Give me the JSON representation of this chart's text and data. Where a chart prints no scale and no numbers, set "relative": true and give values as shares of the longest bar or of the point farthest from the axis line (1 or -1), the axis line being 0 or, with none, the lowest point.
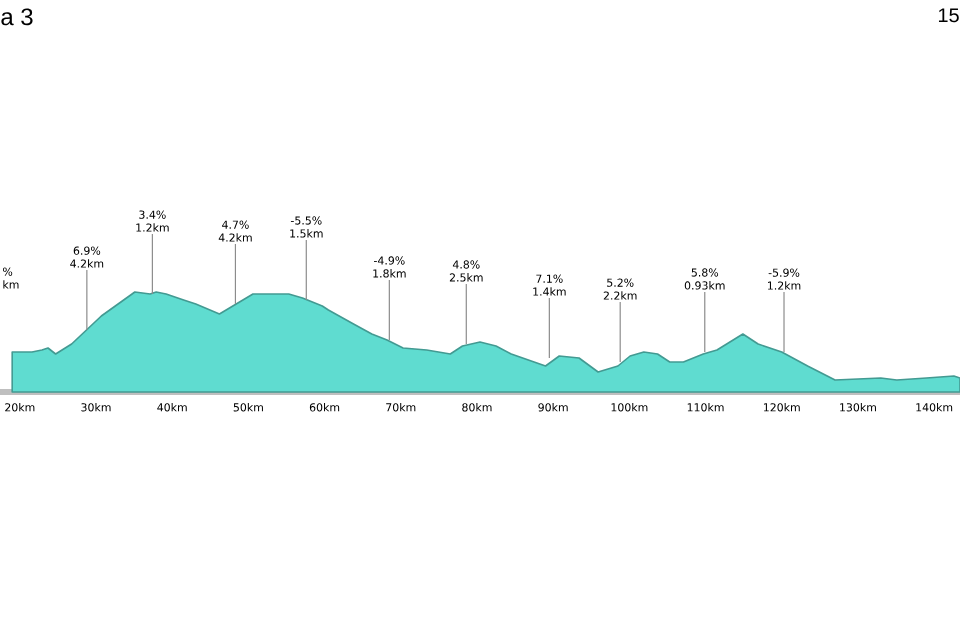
{
  "chart_data": {
    "type": "area",
    "title": "a 3",
    "subtitle": "15",
    "relative": true,
    "x": [
      19.0,
      21.6,
      22.9,
      23.7,
      24.7,
      26.8,
      30.7,
      35.1,
      37.1,
      37.9,
      39.2,
      41.5,
      43.1,
      46.2,
      50.6,
      53.5,
      55.3,
      57.1,
      59.7,
      60.5,
      63.8,
      66.2,
      68.2,
      70.3,
      73.4,
      76.5,
      78.1,
      80.4,
      82.5,
      84.5,
      89.0,
      90.8,
      93.4,
      95.9,
      98.5,
      100.1,
      101.9,
      103.7,
      105.3,
      107.1,
      109.7,
      111.5,
      114.9,
      116.9,
      120.0,
      123.4,
      127.0,
      133.0,
      135.1,
      139.0,
      142.6,
      143.4
    ],
    "series": [
      {
        "color": "#5fdcd0",
        "values": [
          0.4,
          0.4,
          0.42,
          0.44,
          0.38,
          0.48,
          0.76,
          1.0,
          0.98,
          1.0,
          0.98,
          0.92,
          0.88,
          0.78,
          0.98,
          0.98,
          0.98,
          0.94,
          0.86,
          0.82,
          0.68,
          0.58,
          0.52,
          0.44,
          0.42,
          0.38,
          0.46,
          0.5,
          0.46,
          0.38,
          0.26,
          0.36,
          0.34,
          0.2,
          0.26,
          0.36,
          0.4,
          0.38,
          0.3,
          0.3,
          0.38,
          0.42,
          0.58,
          0.48,
          0.4,
          0.26,
          0.12,
          0.14,
          0.12,
          0.14,
          0.16,
          0.14
        ]
      }
    ],
    "xlim": [
      17.4,
      143.4
    ],
    "xticks": [
      {
        "value": 20,
        "label": "20km"
      },
      {
        "value": 30,
        "label": "30km"
      },
      {
        "value": 40,
        "label": "40km"
      },
      {
        "value": 50,
        "label": "50km"
      },
      {
        "value": 60,
        "label": "60km"
      },
      {
        "value": 70,
        "label": "70km"
      },
      {
        "value": 80,
        "label": "80km"
      },
      {
        "value": 90,
        "label": "90km"
      },
      {
        "value": 100,
        "label": "100km"
      },
      {
        "value": 110,
        "label": "110km"
      },
      {
        "value": 120,
        "label": "120km"
      },
      {
        "value": 130,
        "label": "130km"
      },
      {
        "value": 140,
        "label": "140km"
      }
    ],
    "annotations": [
      "% km",
      {
        "text": "6.9% 4.2km",
        "x": 28.8,
        "y": 0.62
      },
      {
        "text": "3.4% 1.2km",
        "x": 37.4,
        "y": 0.98
      },
      {
        "text": "4.7% 4.2km",
        "x": 48.3,
        "y": 0.88
      },
      {
        "text": "-5.5% 1.5km",
        "x": 57.6,
        "y": 0.92
      },
      {
        "text": "-4.9% 1.8km",
        "x": 68.5,
        "y": 0.52
      },
      {
        "text": "4.8% 2.5km",
        "x": 78.6,
        "y": 0.48
      },
      {
        "text": "7.1% 1.4km",
        "x": 89.5,
        "y": 0.34
      },
      {
        "text": "5.2% 2.2km",
        "x": 98.8,
        "y": 0.3
      },
      {
        "text": "5.8% 0.93km",
        "x": 109.9,
        "y": 0.4
      },
      {
        "text": "-5.9% 1.2km",
        "x": 120.3,
        "y": 0.4
      }
    ]
  }
}
